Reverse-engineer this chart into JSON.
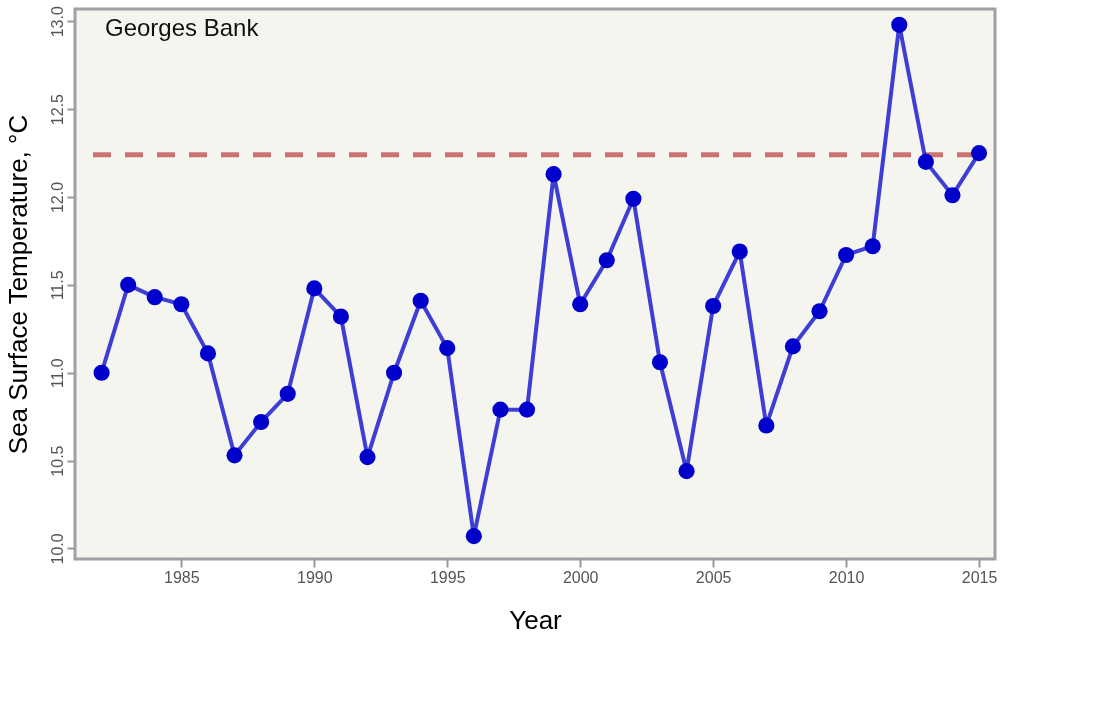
{
  "chart_data": {
    "type": "line",
    "xlabel": "Year",
    "ylabel": "Sea Surface Temperature, °C",
    "annotations": [
      "Georges Bank"
    ],
    "x": [
      1982,
      1983,
      1984,
      1985,
      1986,
      1987,
      1988,
      1989,
      1990,
      1991,
      1992,
      1993,
      1994,
      1995,
      1996,
      1997,
      1998,
      1999,
      2000,
      2001,
      2002,
      2003,
      2004,
      2005,
      2006,
      2007,
      2008,
      2009,
      2010,
      2011,
      2012,
      2013,
      2014,
      2015
    ],
    "series": [
      {
        "color": "#0000cc",
        "values": [
          11.0,
          11.5,
          11.43,
          11.39,
          11.11,
          10.53,
          10.72,
          10.88,
          11.48,
          11.32,
          10.52,
          11.0,
          11.41,
          11.14,
          10.07,
          10.79,
          10.79,
          12.13,
          11.39,
          11.64,
          11.99,
          11.06,
          10.44,
          11.38,
          11.69,
          10.7,
          11.15,
          11.35,
          11.67,
          11.72,
          12.98,
          12.2,
          12.01,
          12.25
        ]
      }
    ],
    "ref_lines": [
      {
        "axis": "y",
        "value": 12.24,
        "color": "#c0504d",
        "line_style": "dashed"
      }
    ],
    "xlim": [
      1981,
      2015.6
    ],
    "ylim": [
      9.94,
      13.07
    ],
    "xticks": [
      1985,
      1990,
      1995,
      2000,
      2005,
      2010,
      2015
    ],
    "yticks": [
      {
        "value": 10,
        "label": "10.0"
      },
      {
        "value": 10.5,
        "label": "10.5"
      },
      {
        "value": 11,
        "label": "11.0"
      },
      {
        "value": 11.5,
        "label": "11.5"
      },
      {
        "value": 12,
        "label": "12.0"
      },
      {
        "value": 12.5,
        "label": "12.5"
      },
      {
        "value": 13,
        "label": "13.0"
      }
    ],
    "marker": "circle",
    "line_style": "solid",
    "grid": false
  }
}
